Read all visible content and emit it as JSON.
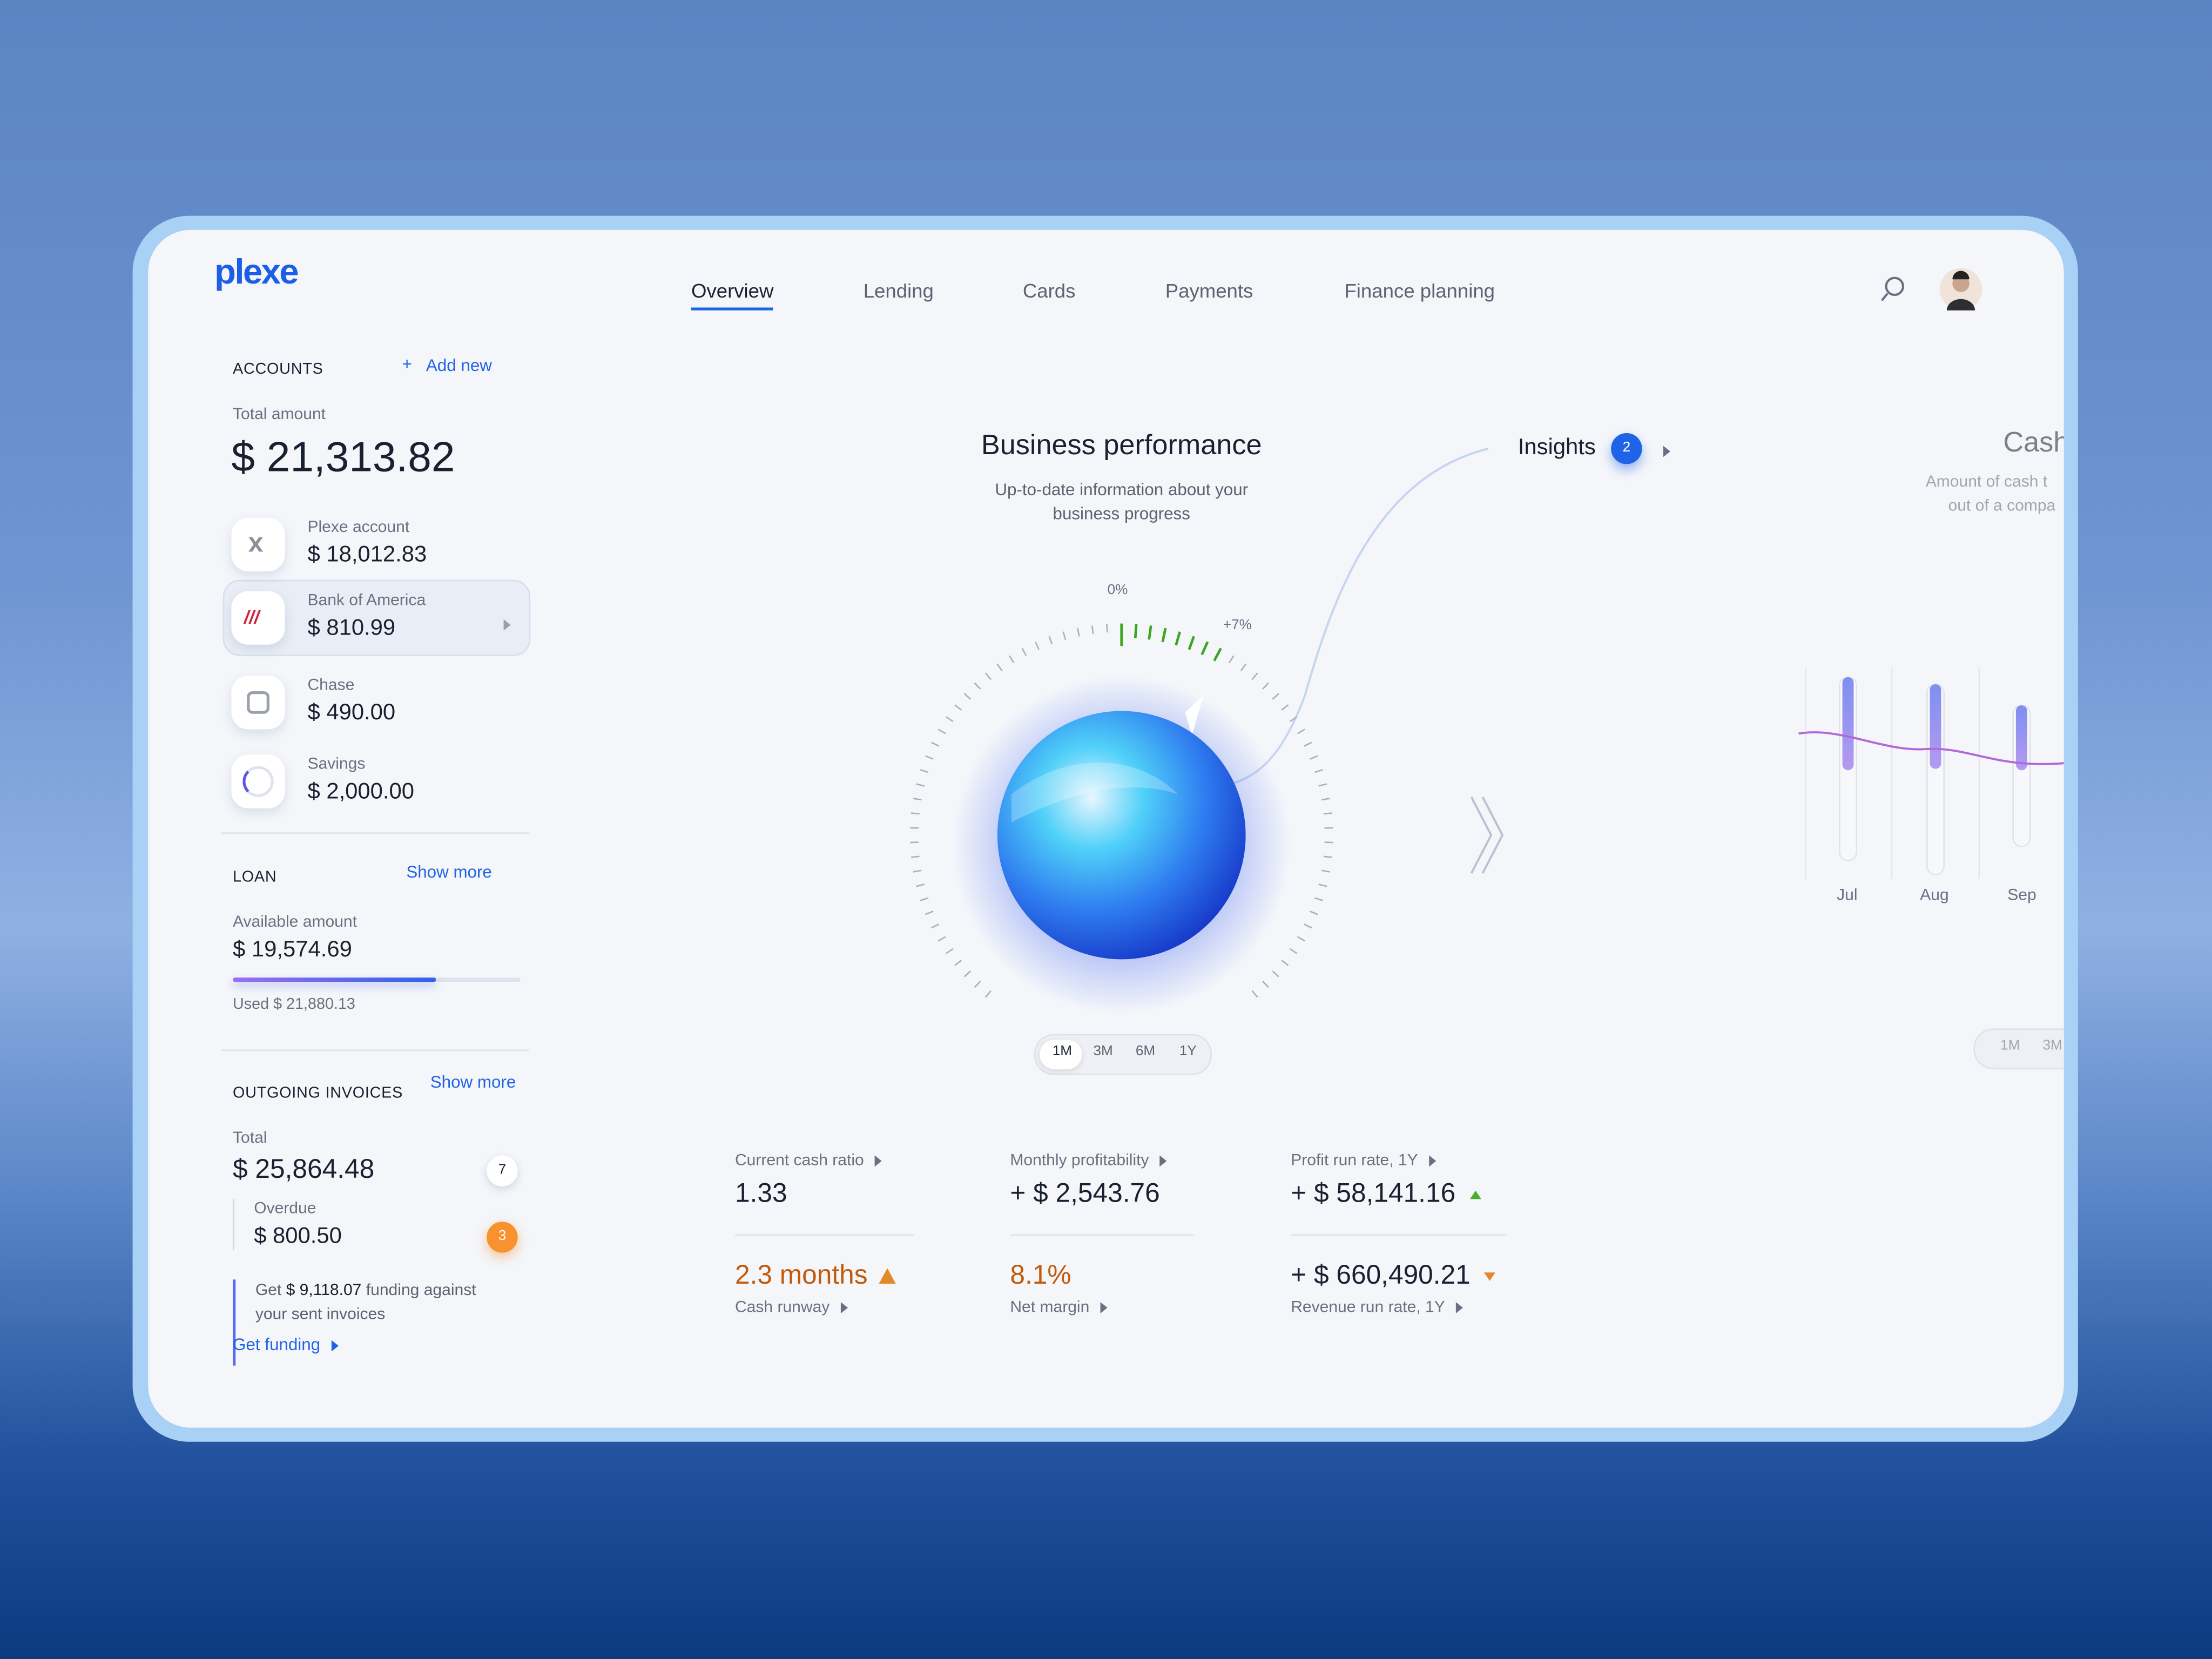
{
  "brand": "plexe",
  "nav": {
    "tabs": [
      "Overview",
      "Lending",
      "Cards",
      "Payments",
      "Finance planning"
    ],
    "active": 0
  },
  "accounts": {
    "title": "ACCOUNTS",
    "add": "Add new",
    "total_label": "Total amount",
    "total": "$ 21,313.82",
    "items": [
      {
        "name": "Plexe account",
        "amount": "$ 18,012.83"
      },
      {
        "name": "Bank of America",
        "amount": "$ 810.99"
      },
      {
        "name": "Chase",
        "amount": "$ 490.00"
      },
      {
        "name": "Savings",
        "amount": "$ 2,000.00"
      }
    ]
  },
  "loan": {
    "title": "LOAN",
    "more": "Show more",
    "available_label": "Available amount",
    "available": "$ 19,574.69",
    "used": "Used $ 21,880.13"
  },
  "invoices": {
    "title": "OUTGOING INVOICES",
    "more": "Show more",
    "total_label": "Total",
    "total": "$ 25,864.48",
    "total_count": 7,
    "overdue_label": "Overdue",
    "overdue": "$ 800.50",
    "overdue_count": 3,
    "funding_pre": "Get",
    "funding_amount": "$ 9,118.07",
    "funding_post": "funding against",
    "funding_line2": "your sent invoices",
    "funding_link": "Get funding"
  },
  "performance": {
    "title": "Business performance",
    "subtitle": [
      "Up-to-date information about your",
      "business progress"
    ],
    "gauge_zero": "0%",
    "gauge_change": "+7%",
    "periods": [
      "1M",
      "3M",
      "6M",
      "1Y"
    ]
  },
  "insights": {
    "label": "Insights",
    "count": 2
  },
  "cash": {
    "title": "Cash",
    "subtitle": [
      "Amount of cash t",
      "out of a compa"
    ],
    "months": [
      "Jul",
      "Aug",
      "Sep"
    ],
    "periods": [
      "1M",
      "3M"
    ]
  },
  "metrics": {
    "top": [
      {
        "label": "Current cash ratio",
        "value": "1.33"
      },
      {
        "label": "Monthly profitability",
        "value": "+ $ 2,543.76"
      },
      {
        "label": "Profit run rate, 1Y",
        "value": "+ $ 58,141.16"
      }
    ],
    "bottom": [
      {
        "value": "2.3 months",
        "label": "Cash runway"
      },
      {
        "value": "8.1%",
        "label": "Net margin"
      },
      {
        "value": "+ $ 660,490.21",
        "label": "Revenue run rate, 1Y"
      }
    ]
  }
}
